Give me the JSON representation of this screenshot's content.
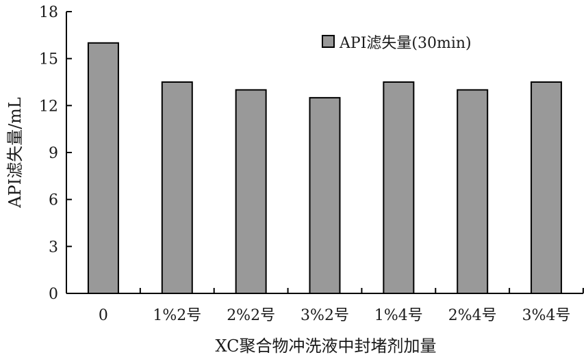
{
  "chart_data": {
    "type": "bar",
    "categories": [
      "0",
      "1%2号",
      "2%2号",
      "3%2号",
      "1%4号",
      "2%4号",
      "3%4号"
    ],
    "series": [
      {
        "name": "API滤失量(30min)",
        "values": [
          16.0,
          13.5,
          13.0,
          12.5,
          13.5,
          13.0,
          13.5
        ]
      }
    ],
    "xlabel": "XC聚合物冲洗液中封堵剂加量",
    "ylabel": "API滤失量/mL",
    "ylim": [
      0,
      18
    ],
    "yticks": [
      "0",
      "3",
      "6",
      "9",
      "12",
      "15",
      "18"
    ],
    "grid": false,
    "legend_position": "top-right",
    "colors": {
      "bar_fill": "#999999",
      "bar_stroke": "#000000",
      "axis": "#000000"
    }
  }
}
